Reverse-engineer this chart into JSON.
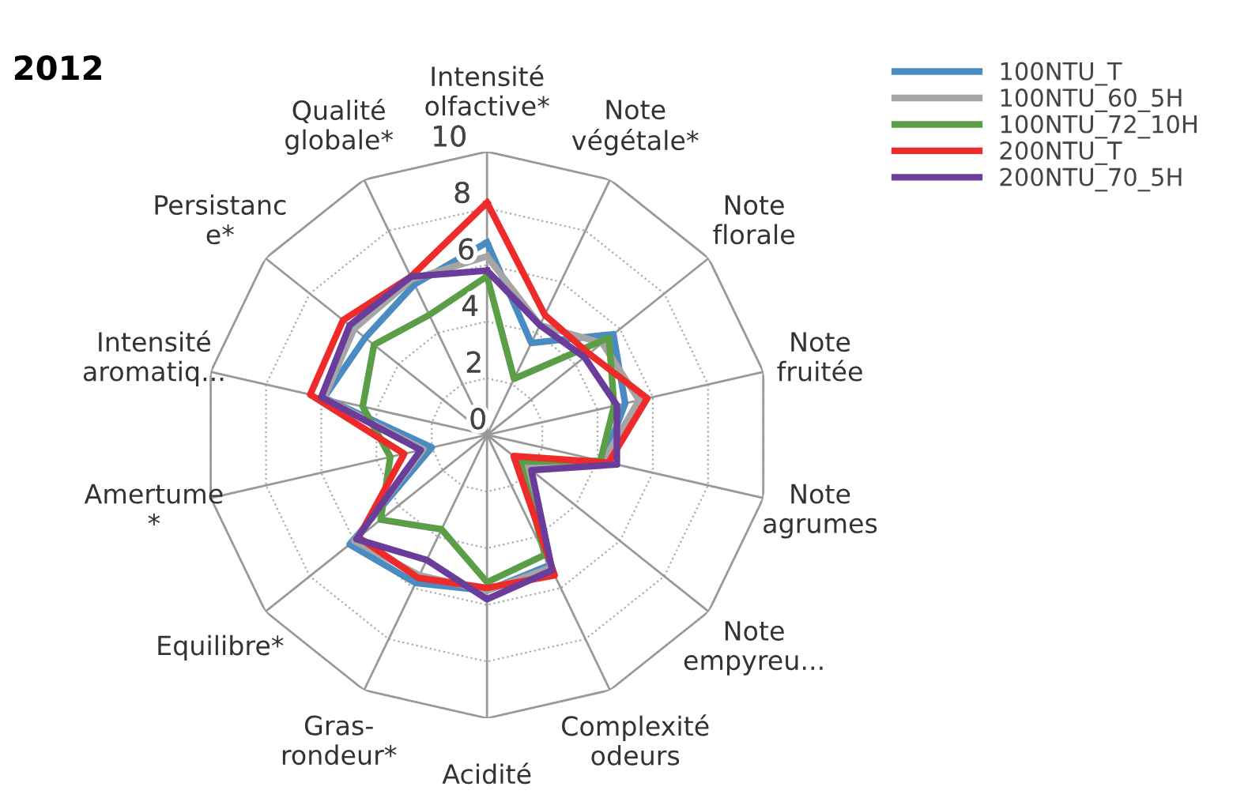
{
  "chart_data": {
    "type": "radar",
    "title": "2012",
    "categories": [
      "Intensité\nolfactive*",
      "Note\nvégétale*",
      "Note\nflorale",
      "Note\nfruitée",
      "Note\nagrumes",
      "Note\nempyreu...",
      "Complexité\nodeurs",
      "Acidité",
      "Gras-\nrondeur*",
      "Equilibre*",
      "Amertume\n*",
      "Intensité\naromatiq...",
      "Persistanc\ne*",
      "Qualité\nglobale*"
    ],
    "series": [
      {
        "name": "100NTU_T",
        "color": "#4a8bc2",
        "values": [
          6.8,
          3.6,
          5.7,
          5.0,
          4.2,
          1.5,
          5.1,
          5.5,
          5.8,
          6.2,
          2.0,
          5.9,
          5.5,
          5.9
        ]
      },
      {
        "name": "100NTU_60_5H",
        "color": "#a5a5a5",
        "values": [
          6.3,
          4.3,
          5.2,
          5.5,
          4.2,
          1.7,
          5.2,
          5.5,
          5.5,
          6.0,
          2.3,
          5.9,
          6.0,
          6.1
        ]
      },
      {
        "name": "100NTU_72_10H",
        "color": "#5a9e47",
        "values": [
          5.6,
          2.2,
          5.5,
          4.6,
          4.1,
          1.5,
          4.7,
          5.2,
          3.7,
          4.8,
          3.5,
          4.5,
          5.1,
          4.7
        ]
      },
      {
        "name": "200NTU_T",
        "color": "#ee2a2a",
        "values": [
          8.2,
          4.7,
          4.6,
          5.8,
          4.4,
          1.2,
          5.5,
          5.4,
          5.6,
          5.8,
          3.0,
          6.4,
          6.5,
          6.2
        ]
      },
      {
        "name": "200NTU_70_5H",
        "color": "#6a3d9a",
        "values": [
          5.8,
          4.3,
          4.4,
          4.7,
          4.7,
          2.0,
          5.3,
          5.8,
          4.9,
          5.9,
          2.4,
          6.0,
          6.2,
          6.2
        ]
      }
    ],
    "ylim": [
      0,
      10
    ],
    "yticks": [
      0,
      2,
      4,
      6,
      8,
      10
    ],
    "grid": true,
    "legend": "top right",
    "marker": "none",
    "line_style": "solid"
  }
}
